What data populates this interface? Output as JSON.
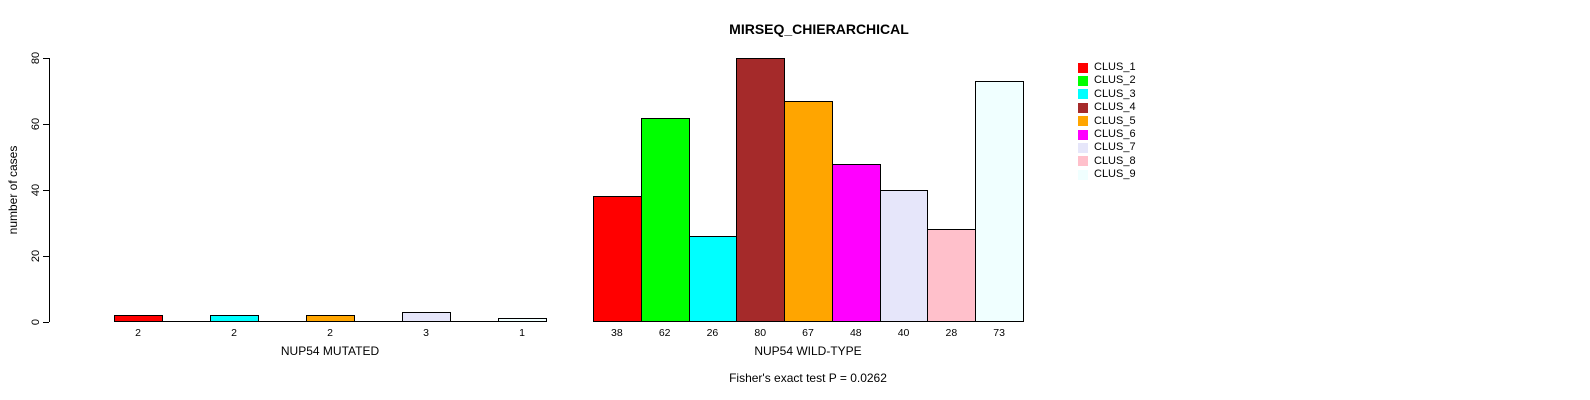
{
  "chart_data": {
    "type": "bar",
    "title": "MIRSEQ_CHIERARCHICAL",
    "ylabel": "number of cases",
    "ylim": [
      0,
      80
    ],
    "yticks": [
      0,
      20,
      40,
      60,
      80
    ],
    "grid": false,
    "legend_position": "right",
    "clusters": [
      {
        "label": "CLUS_1",
        "color": "#FF0000"
      },
      {
        "label": "CLUS_2",
        "color": "#00FF00"
      },
      {
        "label": "CLUS_3",
        "color": "#00FFFF"
      },
      {
        "label": "CLUS_4",
        "color": "#A52A2A"
      },
      {
        "label": "CLUS_5",
        "color": "#FFA500"
      },
      {
        "label": "CLUS_6",
        "color": "#FF00FF"
      },
      {
        "label": "CLUS_7",
        "color": "#E6E6FA"
      },
      {
        "label": "CLUS_8",
        "color": "#FFC0CB"
      },
      {
        "label": "CLUS_9",
        "color": "#F0FFFF"
      }
    ],
    "groups": [
      {
        "label": "NUP54 MUTATED",
        "values": [
          2,
          0,
          2,
          0,
          2,
          0,
          3,
          0,
          1
        ]
      },
      {
        "label": "NUP54 WILD-TYPE",
        "values": [
          38,
          62,
          26,
          80,
          67,
          48,
          40,
          28,
          73
        ]
      }
    ],
    "annotation": "Fisher's exact test P = 0.0262"
  }
}
